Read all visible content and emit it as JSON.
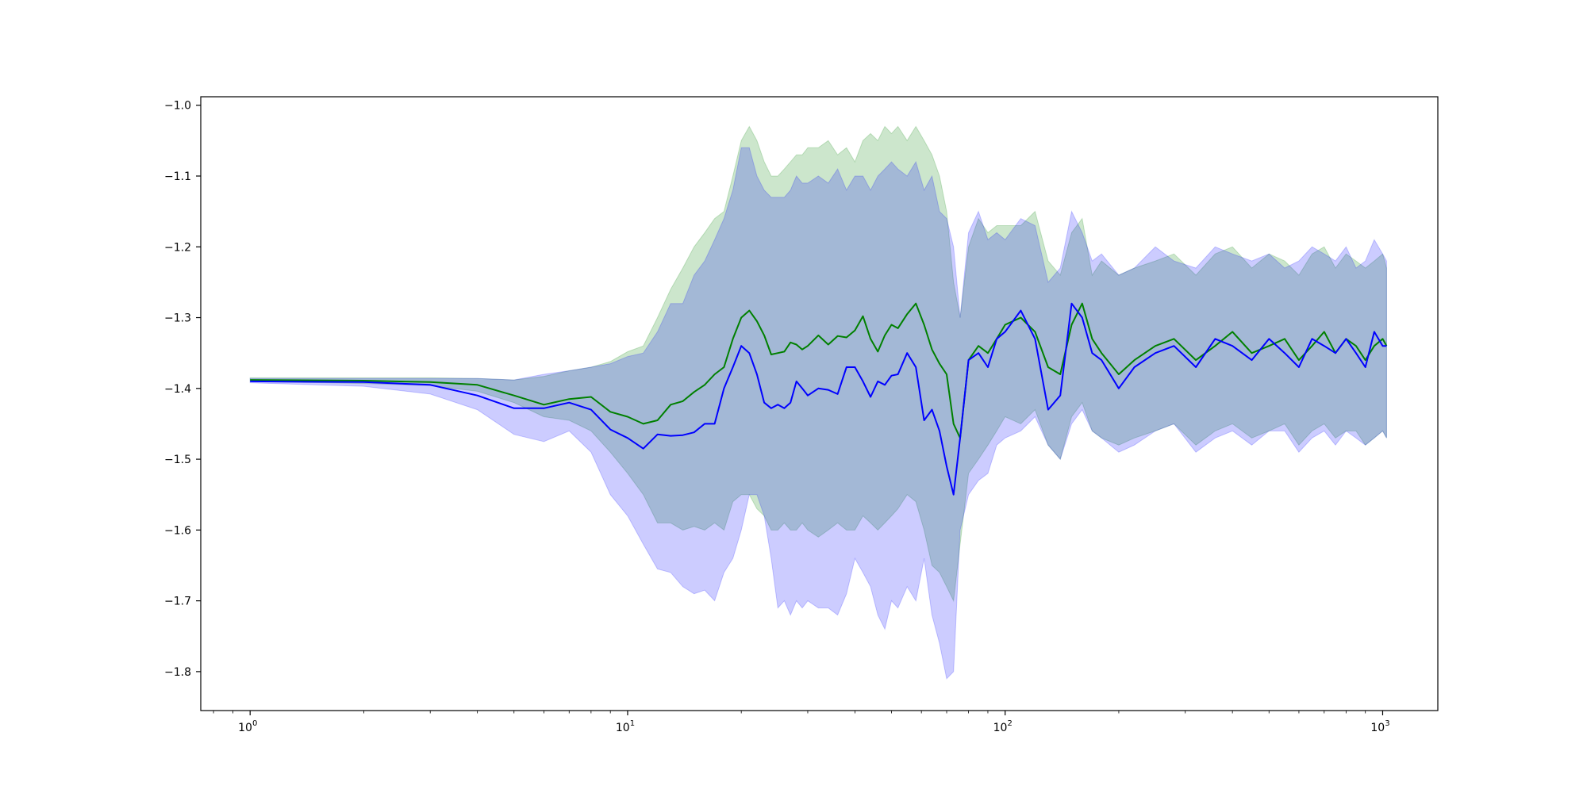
{
  "chart_data": {
    "type": "line",
    "title": "",
    "xlabel": "",
    "ylabel": "",
    "xscale": "log",
    "xlim": [
      0.74,
      1400
    ],
    "ylim": [
      -1.855,
      -0.988
    ],
    "legend": "none",
    "grid": false,
    "x_ticks": [
      {
        "value": 1,
        "base": "10",
        "exp": "0"
      },
      {
        "value": 10,
        "base": "10",
        "exp": "1"
      },
      {
        "value": 100,
        "base": "10",
        "exp": "2"
      },
      {
        "value": 1000,
        "base": "10",
        "exp": "3"
      }
    ],
    "y_ticks": [
      {
        "value": -1.0,
        "label": "−1.0"
      },
      {
        "value": -1.1,
        "label": "−1.1"
      },
      {
        "value": -1.2,
        "label": "−1.2"
      },
      {
        "value": -1.3,
        "label": "−1.3"
      },
      {
        "value": -1.4,
        "label": "−1.4"
      },
      {
        "value": -1.5,
        "label": "−1.5"
      },
      {
        "value": -1.6,
        "label": "−1.6"
      },
      {
        "value": -1.7,
        "label": "−1.7"
      },
      {
        "value": -1.8,
        "label": "−1.8"
      }
    ],
    "series": [
      {
        "color": "#008000",
        "band_color": "#008000",
        "band_opacity": 0.2,
        "x": [
          1,
          2,
          3,
          4,
          5,
          6,
          7,
          8,
          9,
          10,
          11,
          12,
          13,
          14,
          15,
          16,
          17,
          18,
          19,
          20,
          21,
          22,
          23,
          24,
          25,
          26,
          27,
          28,
          29,
          30,
          32,
          34,
          36,
          38,
          40,
          42,
          44,
          46,
          48,
          50,
          52,
          55,
          58,
          61,
          64,
          67,
          70,
          73,
          76,
          80,
          85,
          90,
          95,
          100,
          110,
          120,
          130,
          140,
          150,
          160,
          170,
          180,
          200,
          220,
          250,
          280,
          320,
          360,
          400,
          450,
          500,
          550,
          600,
          650,
          700,
          750,
          800,
          850,
          900,
          950,
          1000,
          1024
        ],
        "mean": [
          -1.388,
          -1.389,
          -1.391,
          -1.395,
          -1.41,
          -1.423,
          -1.415,
          -1.412,
          -1.433,
          -1.44,
          -1.45,
          -1.445,
          -1.423,
          -1.418,
          -1.405,
          -1.395,
          -1.38,
          -1.37,
          -1.33,
          -1.3,
          -1.29,
          -1.305,
          -1.325,
          -1.352,
          -1.35,
          -1.348,
          -1.335,
          -1.338,
          -1.345,
          -1.34,
          -1.325,
          -1.338,
          -1.326,
          -1.328,
          -1.318,
          -1.298,
          -1.33,
          -1.348,
          -1.325,
          -1.31,
          -1.315,
          -1.295,
          -1.28,
          -1.31,
          -1.345,
          -1.365,
          -1.38,
          -1.45,
          -1.47,
          -1.36,
          -1.34,
          -1.35,
          -1.33,
          -1.31,
          -1.3,
          -1.32,
          -1.37,
          -1.38,
          -1.31,
          -1.28,
          -1.33,
          -1.35,
          -1.38,
          -1.36,
          -1.34,
          -1.33,
          -1.36,
          -1.34,
          -1.32,
          -1.35,
          -1.34,
          -1.33,
          -1.36,
          -1.34,
          -1.32,
          -1.35,
          -1.33,
          -1.34,
          -1.36,
          -1.34,
          -1.33,
          -1.34
        ],
        "upper": [
          -1.385,
          -1.385,
          -1.385,
          -1.386,
          -1.388,
          -1.383,
          -1.375,
          -1.37,
          -1.362,
          -1.348,
          -1.34,
          -1.3,
          -1.26,
          -1.23,
          -1.2,
          -1.18,
          -1.16,
          -1.15,
          -1.1,
          -1.05,
          -1.03,
          -1.05,
          -1.08,
          -1.1,
          -1.1,
          -1.09,
          -1.08,
          -1.07,
          -1.07,
          -1.06,
          -1.06,
          -1.05,
          -1.07,
          -1.06,
          -1.08,
          -1.05,
          -1.04,
          -1.05,
          -1.03,
          -1.04,
          -1.03,
          -1.05,
          -1.03,
          -1.05,
          -1.07,
          -1.1,
          -1.15,
          -1.25,
          -1.3,
          -1.2,
          -1.16,
          -1.18,
          -1.17,
          -1.17,
          -1.17,
          -1.15,
          -1.22,
          -1.24,
          -1.18,
          -1.16,
          -1.24,
          -1.22,
          -1.24,
          -1.23,
          -1.22,
          -1.21,
          -1.24,
          -1.21,
          -1.2,
          -1.23,
          -1.21,
          -1.22,
          -1.24,
          -1.21,
          -1.2,
          -1.23,
          -1.21,
          -1.22,
          -1.23,
          -1.22,
          -1.21,
          -1.23
        ],
        "lower": [
          -1.39,
          -1.393,
          -1.396,
          -1.404,
          -1.42,
          -1.44,
          -1.445,
          -1.46,
          -1.49,
          -1.52,
          -1.55,
          -1.59,
          -1.59,
          -1.6,
          -1.595,
          -1.6,
          -1.59,
          -1.6,
          -1.56,
          -1.55,
          -1.55,
          -1.57,
          -1.58,
          -1.6,
          -1.6,
          -1.59,
          -1.6,
          -1.6,
          -1.59,
          -1.6,
          -1.61,
          -1.6,
          -1.59,
          -1.6,
          -1.6,
          -1.58,
          -1.59,
          -1.6,
          -1.59,
          -1.58,
          -1.57,
          -1.55,
          -1.56,
          -1.6,
          -1.65,
          -1.66,
          -1.68,
          -1.7,
          -1.62,
          -1.52,
          -1.5,
          -1.48,
          -1.46,
          -1.44,
          -1.45,
          -1.43,
          -1.48,
          -1.5,
          -1.44,
          -1.42,
          -1.46,
          -1.47,
          -1.48,
          -1.47,
          -1.46,
          -1.45,
          -1.48,
          -1.46,
          -1.45,
          -1.47,
          -1.46,
          -1.45,
          -1.48,
          -1.46,
          -1.45,
          -1.47,
          -1.46,
          -1.46,
          -1.48,
          -1.47,
          -1.46,
          -1.47
        ]
      },
      {
        "color": "#0000ff",
        "band_color": "#0000ff",
        "band_opacity": 0.2,
        "x": [
          1,
          2,
          3,
          4,
          5,
          6,
          7,
          8,
          9,
          10,
          11,
          12,
          13,
          14,
          15,
          16,
          17,
          18,
          19,
          20,
          21,
          22,
          23,
          24,
          25,
          26,
          27,
          28,
          29,
          30,
          32,
          34,
          36,
          38,
          40,
          42,
          44,
          46,
          48,
          50,
          52,
          55,
          58,
          61,
          64,
          67,
          70,
          73,
          76,
          80,
          85,
          90,
          95,
          100,
          110,
          120,
          130,
          140,
          150,
          160,
          170,
          180,
          200,
          220,
          250,
          280,
          320,
          360,
          400,
          450,
          500,
          550,
          600,
          650,
          700,
          750,
          800,
          850,
          900,
          950,
          1000,
          1024
        ],
        "mean": [
          -1.39,
          -1.391,
          -1.395,
          -1.41,
          -1.428,
          -1.428,
          -1.42,
          -1.43,
          -1.458,
          -1.47,
          -1.485,
          -1.465,
          -1.467,
          -1.466,
          -1.462,
          -1.45,
          -1.45,
          -1.4,
          -1.37,
          -1.34,
          -1.35,
          -1.38,
          -1.42,
          -1.428,
          -1.423,
          -1.428,
          -1.42,
          -1.39,
          -1.4,
          -1.41,
          -1.4,
          -1.402,
          -1.408,
          -1.37,
          -1.37,
          -1.39,
          -1.412,
          -1.39,
          -1.395,
          -1.382,
          -1.38,
          -1.35,
          -1.37,
          -1.445,
          -1.43,
          -1.46,
          -1.51,
          -1.55,
          -1.47,
          -1.36,
          -1.35,
          -1.37,
          -1.33,
          -1.32,
          -1.29,
          -1.33,
          -1.43,
          -1.41,
          -1.28,
          -1.3,
          -1.35,
          -1.36,
          -1.4,
          -1.37,
          -1.35,
          -1.34,
          -1.37,
          -1.33,
          -1.34,
          -1.36,
          -1.33,
          -1.35,
          -1.37,
          -1.33,
          -1.34,
          -1.35,
          -1.33,
          -1.35,
          -1.37,
          -1.32,
          -1.34,
          -1.34
        ],
        "upper": [
          -1.386,
          -1.386,
          -1.386,
          -1.386,
          -1.388,
          -1.38,
          -1.375,
          -1.37,
          -1.365,
          -1.355,
          -1.35,
          -1.32,
          -1.28,
          -1.28,
          -1.24,
          -1.22,
          -1.19,
          -1.16,
          -1.12,
          -1.06,
          -1.06,
          -1.1,
          -1.12,
          -1.13,
          -1.13,
          -1.13,
          -1.12,
          -1.1,
          -1.11,
          -1.11,
          -1.1,
          -1.11,
          -1.09,
          -1.12,
          -1.1,
          -1.1,
          -1.12,
          -1.1,
          -1.09,
          -1.08,
          -1.09,
          -1.1,
          -1.08,
          -1.12,
          -1.1,
          -1.15,
          -1.16,
          -1.2,
          -1.3,
          -1.18,
          -1.15,
          -1.19,
          -1.18,
          -1.19,
          -1.16,
          -1.17,
          -1.25,
          -1.23,
          -1.15,
          -1.18,
          -1.22,
          -1.21,
          -1.24,
          -1.23,
          -1.2,
          -1.22,
          -1.23,
          -1.2,
          -1.21,
          -1.22,
          -1.21,
          -1.23,
          -1.22,
          -1.2,
          -1.21,
          -1.22,
          -1.2,
          -1.23,
          -1.22,
          -1.19,
          -1.21,
          -1.22
        ],
        "lower": [
          -1.392,
          -1.397,
          -1.408,
          -1.43,
          -1.465,
          -1.475,
          -1.46,
          -1.49,
          -1.55,
          -1.58,
          -1.62,
          -1.655,
          -1.66,
          -1.68,
          -1.69,
          -1.685,
          -1.7,
          -1.66,
          -1.64,
          -1.6,
          -1.55,
          -1.55,
          -1.58,
          -1.64,
          -1.71,
          -1.7,
          -1.72,
          -1.7,
          -1.71,
          -1.7,
          -1.71,
          -1.71,
          -1.72,
          -1.69,
          -1.64,
          -1.66,
          -1.68,
          -1.72,
          -1.74,
          -1.7,
          -1.71,
          -1.68,
          -1.7,
          -1.64,
          -1.72,
          -1.76,
          -1.81,
          -1.8,
          -1.6,
          -1.55,
          -1.53,
          -1.52,
          -1.48,
          -1.47,
          -1.46,
          -1.44,
          -1.48,
          -1.5,
          -1.45,
          -1.43,
          -1.46,
          -1.47,
          -1.49,
          -1.48,
          -1.46,
          -1.45,
          -1.49,
          -1.47,
          -1.46,
          -1.48,
          -1.46,
          -1.46,
          -1.49,
          -1.47,
          -1.46,
          -1.48,
          -1.46,
          -1.47,
          -1.48,
          -1.47,
          -1.46,
          -1.47
        ]
      }
    ]
  }
}
